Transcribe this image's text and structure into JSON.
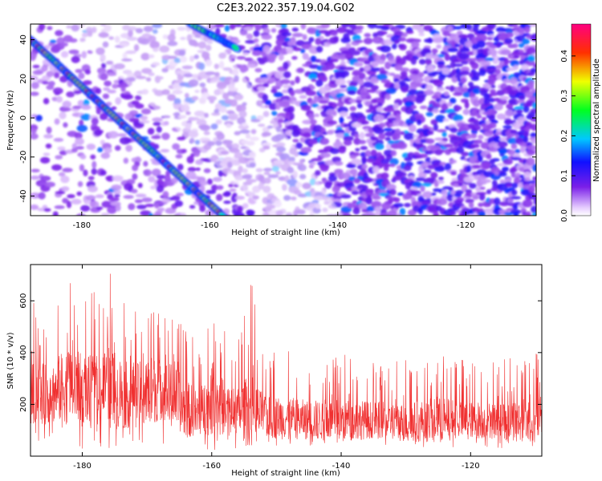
{
  "title": "C2E3.2022.357.19.04.G02",
  "chart_data": [
    {
      "type": "heatmap",
      "xlabel": "Height of straight line (km)",
      "ylabel": "Frequency (Hz)",
      "xlim": [
        -188,
        -109
      ],
      "ylim": [
        -50,
        48
      ],
      "xticks": [
        -180,
        -160,
        -140,
        -120
      ],
      "yticks": [
        -40,
        -20,
        0,
        20,
        40
      ],
      "colorbar": {
        "label": "Normalized spectral amplitude",
        "range": [
          0.0,
          0.48
        ],
        "ticks": [
          0.0,
          0.1,
          0.2,
          0.3,
          0.4
        ]
      },
      "ridges": [
        {
          "x_start": -188,
          "y_start": 40,
          "x_end": -158,
          "y_end": -50
        },
        {
          "x_start": -163,
          "y_start": 48,
          "x_end": -156,
          "y_end": 36
        }
      ],
      "grid": false
    },
    {
      "type": "line",
      "xlabel": "Height of straight line (km)",
      "ylabel": "SNR (10 * v/v)",
      "xlim": [
        -188,
        -109
      ],
      "ylim": [
        0,
        740
      ],
      "xticks": [
        -180,
        -160,
        -140,
        -120
      ],
      "yticks": [
        200,
        400,
        600
      ],
      "color": "#f03030",
      "envelope": {
        "x": [
          -188,
          -185,
          -182,
          -180,
          -178,
          -176,
          -174,
          -172,
          -170,
          -168,
          -166,
          -164,
          -162,
          -160,
          -158,
          -156,
          -154,
          -152,
          -150,
          -145,
          -140,
          -135,
          -130,
          -125,
          -120,
          -115,
          -110,
          -109
        ],
        "max": [
          600,
          560,
          700,
          620,
          640,
          720,
          660,
          560,
          660,
          600,
          560,
          520,
          440,
          600,
          500,
          440,
          700,
          380,
          420,
          380,
          400,
          360,
          380,
          420,
          360,
          380,
          420,
          400
        ],
        "min": [
          60,
          40,
          30,
          20,
          30,
          10,
          40,
          30,
          40,
          50,
          40,
          20,
          40,
          20,
          20,
          30,
          40,
          30,
          40,
          40,
          30,
          40,
          40,
          30,
          40,
          30,
          40,
          40
        ],
        "median": [
          240,
          240,
          280,
          260,
          250,
          270,
          240,
          230,
          250,
          260,
          240,
          180,
          170,
          210,
          190,
          170,
          180,
          150,
          150,
          140,
          140,
          140,
          130,
          140,
          140,
          140,
          140,
          150
        ]
      }
    }
  ]
}
